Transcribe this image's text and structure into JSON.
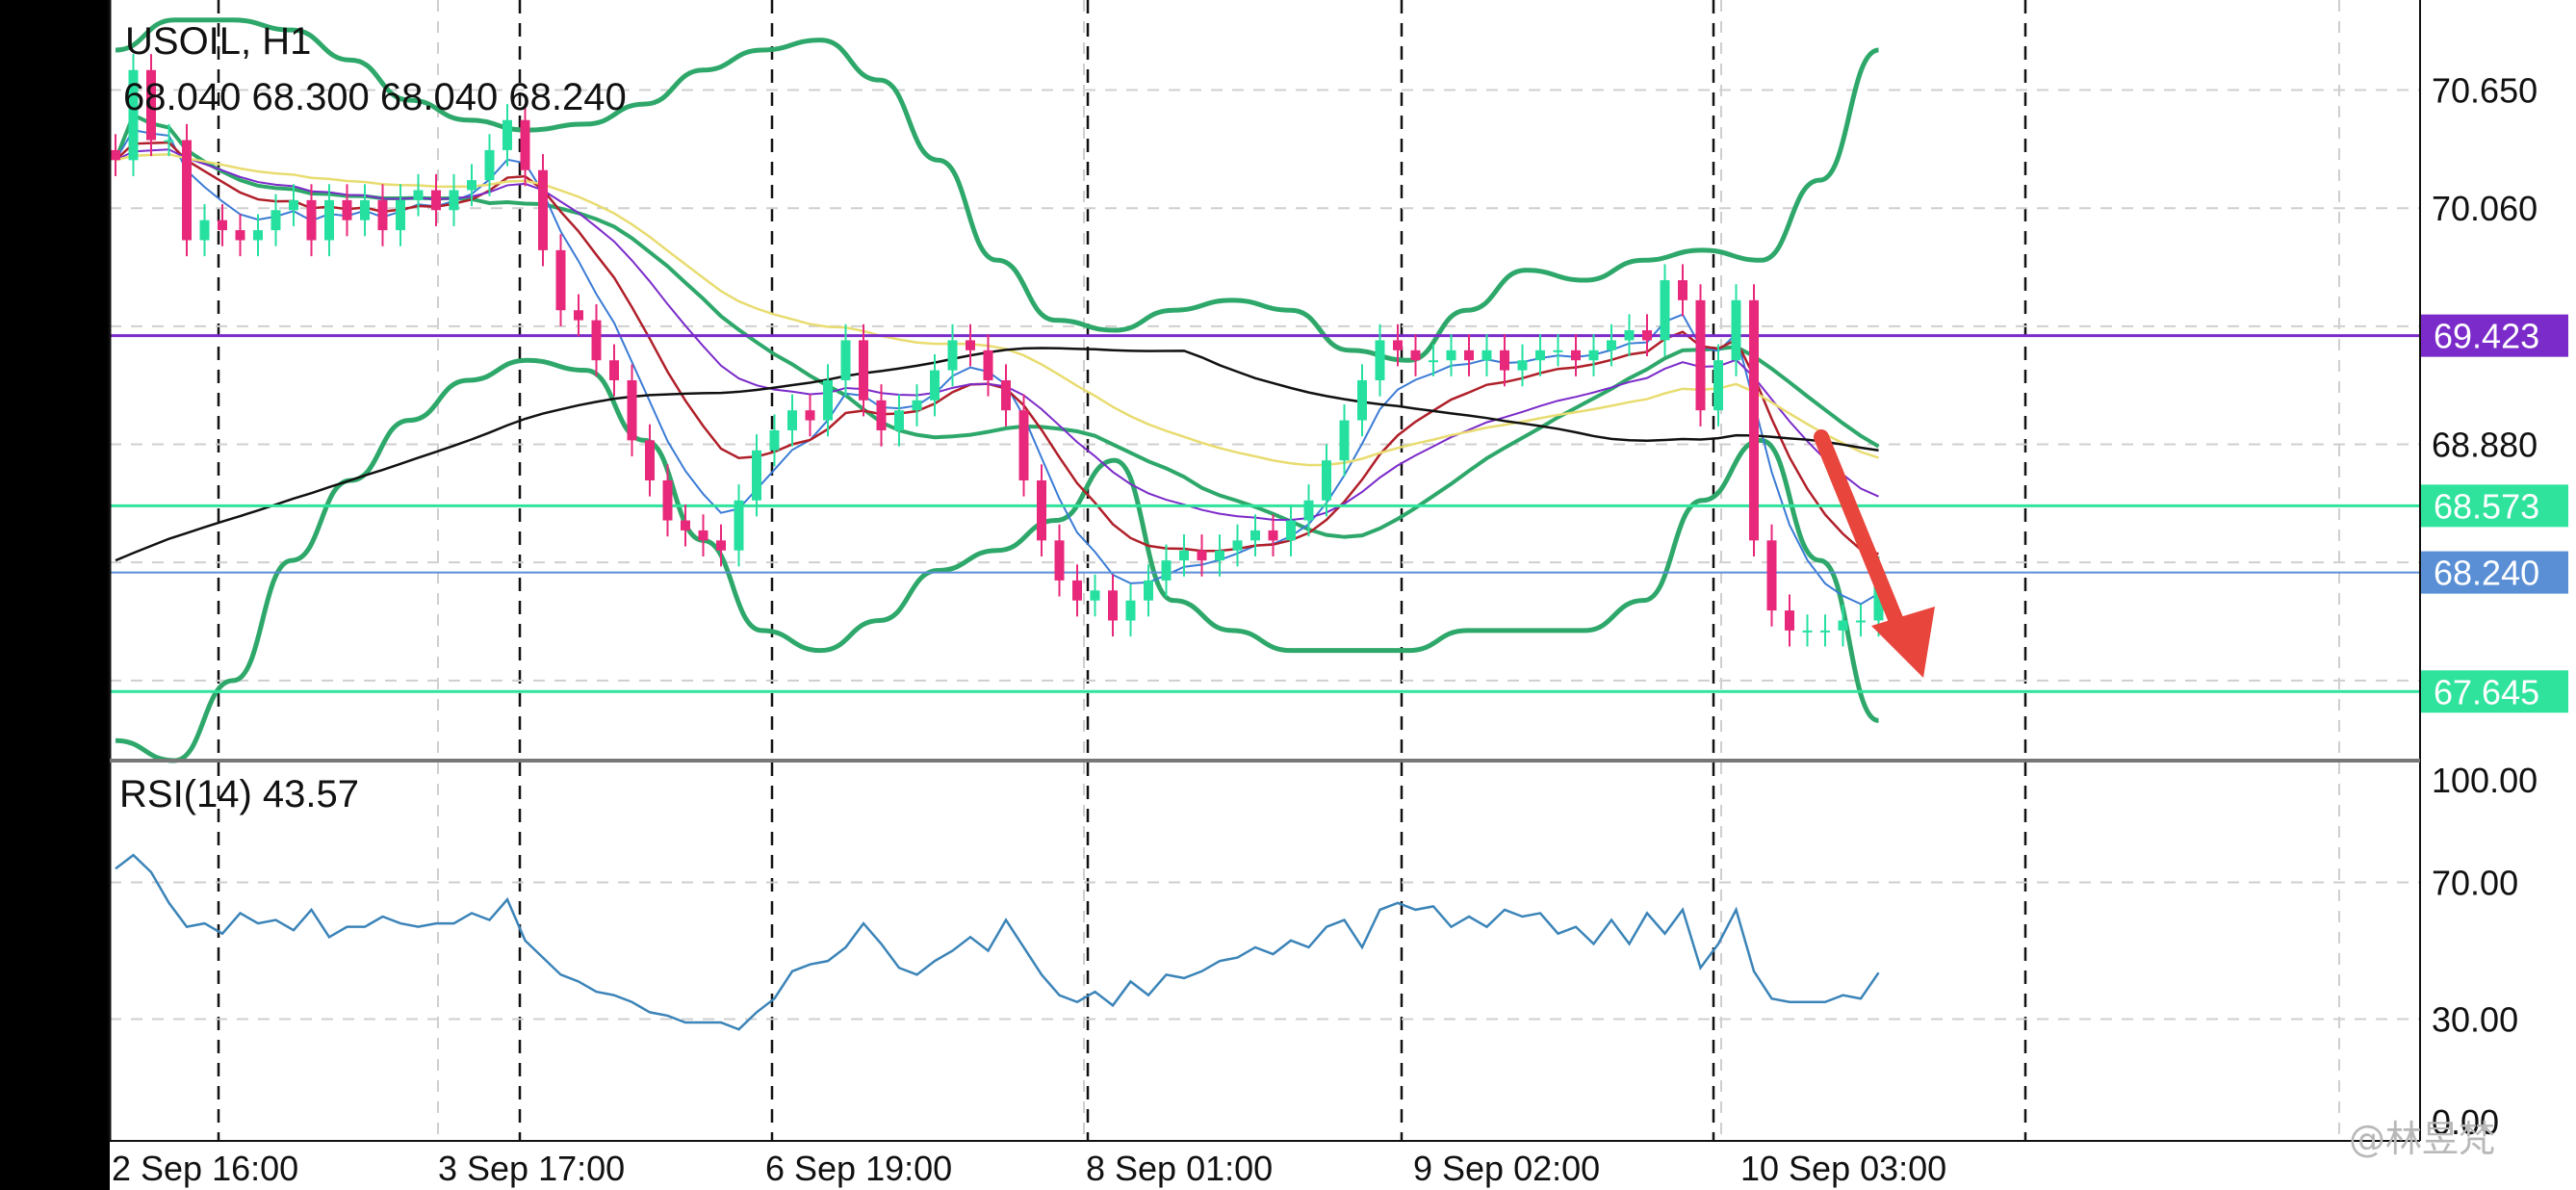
{
  "header": {
    "symbol_timeframe": "USOIL, H1",
    "ohlc": "68.040 68.300 68.040 68.240"
  },
  "rsi_label": "RSI(14) 43.57",
  "watermark": "@林昱梵",
  "colors": {
    "bull": "#26e0a0",
    "bear": "#e8287a",
    "band": "#2ea86a",
    "purple_line": "#7b2bc9",
    "level_line": "#2fe39d",
    "current_line": "#5a8fd6",
    "rsi_line": "#3b84b8",
    "arrow": "#e8453c"
  },
  "chart_data": [
    {
      "type": "candlestick",
      "symbol": "USOIL",
      "timeframe": "H1",
      "y_ticks": [
        "70.650",
        "70.060",
        "68.880"
      ],
      "x_ticks": [
        "2 Sep 16:00",
        "3 Sep 17:00",
        "6 Sep 19:00",
        "8 Sep 01:00",
        "9 Sep 02:00",
        "10 Sep 03:00"
      ],
      "ylim": [
        67.3,
        71.1
      ],
      "price_tags": [
        {
          "name": "69.423",
          "value": 69.423,
          "color": "#7b2bc9"
        },
        {
          "name": "68.573",
          "value": 68.573,
          "color": "#2fe39d"
        },
        {
          "name": "68.240",
          "value": 68.24,
          "color": "#5a8fd6"
        },
        {
          "name": "67.645",
          "value": 67.645,
          "color": "#2fe39d"
        }
      ],
      "close": [
        70.3,
        70.75,
        70.4,
        70.4,
        69.9,
        70.0,
        69.95,
        69.9,
        69.95,
        70.05,
        70.1,
        69.9,
        70.1,
        70.0,
        70.1,
        69.95,
        70.1,
        70.15,
        70.05,
        70.15,
        70.2,
        70.35,
        70.5,
        70.25,
        69.85,
        69.55,
        69.5,
        69.3,
        69.2,
        68.9,
        68.7,
        68.5,
        68.45,
        68.4,
        68.35,
        68.6,
        68.85,
        68.95,
        69.05,
        69.0,
        69.2,
        69.4,
        69.1,
        68.95,
        69.05,
        69.1,
        69.25,
        69.4,
        69.35,
        69.2,
        69.05,
        68.7,
        68.4,
        68.2,
        68.1,
        68.15,
        68.0,
        68.1,
        68.2,
        68.3,
        68.35,
        68.3,
        68.35,
        68.4,
        68.45,
        68.4,
        68.5,
        68.6,
        68.8,
        69.0,
        69.2,
        69.4,
        69.35,
        69.3,
        69.3,
        69.35,
        69.3,
        69.35,
        69.25,
        69.3,
        69.35,
        69.35,
        69.3,
        69.35,
        69.4,
        69.45,
        69.4,
        69.7,
        69.6,
        69.05,
        69.3,
        69.6,
        68.4,
        68.05,
        67.95,
        67.95,
        67.95,
        68.0,
        68.0,
        68.24
      ],
      "bollinger_upper": [
        70.85,
        71.0,
        71.0,
        70.95,
        70.8,
        70.6,
        70.5,
        70.45,
        70.48,
        70.58,
        70.75,
        70.85,
        70.9,
        70.7,
        70.3,
        69.8,
        69.5,
        69.45,
        69.55,
        69.6,
        69.55,
        69.35,
        69.3,
        69.55,
        69.75,
        69.7,
        69.8,
        69.85,
        69.8,
        70.2,
        70.85
      ],
      "bollinger_lower": [
        67.4,
        67.3,
        67.7,
        68.3,
        68.7,
        69.0,
        69.2,
        69.3,
        69.25,
        68.9,
        68.4,
        67.95,
        67.85,
        68.0,
        68.25,
        68.35,
        68.5,
        68.8,
        68.1,
        67.95,
        67.85,
        67.85,
        67.85,
        67.95,
        67.95,
        67.95,
        68.1,
        68.6,
        68.9,
        68.3,
        67.5
      ],
      "rsi": {
        "period": 14,
        "current": 43.57,
        "y_ticks": [
          "100.00",
          "70.00",
          "30.00",
          "0.00"
        ],
        "ylim": [
          0,
          100
        ],
        "values": [
          74,
          78,
          73,
          64,
          57,
          58,
          55,
          61,
          58,
          59,
          56,
          62,
          54,
          57,
          57,
          60,
          58,
          57,
          58,
          58,
          61,
          59,
          65,
          53,
          48,
          43,
          41,
          38,
          37,
          35,
          32,
          31,
          29,
          29,
          29,
          27,
          32,
          36,
          44,
          46,
          47,
          51,
          58,
          52,
          45,
          43,
          47,
          50,
          54,
          50,
          59,
          51,
          43,
          37,
          35,
          38,
          34,
          41,
          37,
          43,
          42,
          44,
          47,
          48,
          51,
          49,
          53,
          51,
          57,
          59,
          51,
          62,
          64,
          62,
          63,
          57,
          60,
          57,
          62,
          60,
          61,
          55,
          57,
          52,
          59,
          52,
          61,
          55,
          62,
          45,
          52,
          62,
          44,
          36,
          35,
          35,
          35,
          37,
          36,
          43.57
        ]
      }
    }
  ]
}
